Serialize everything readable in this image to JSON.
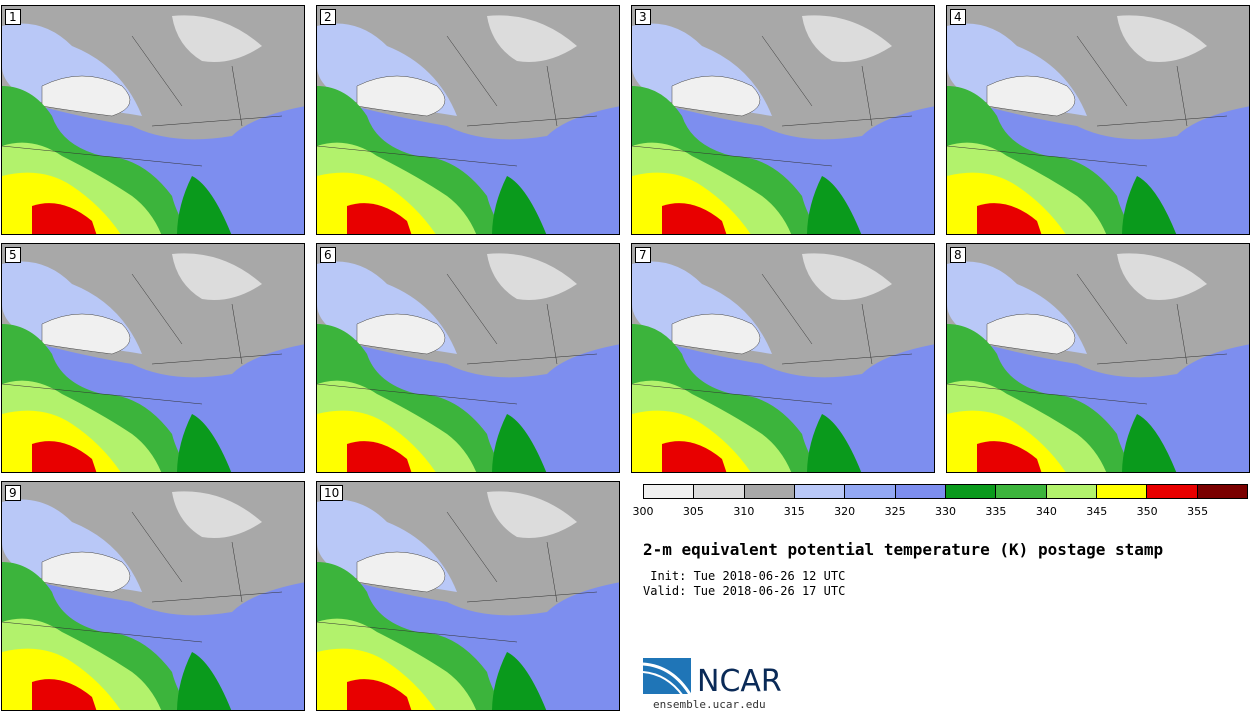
{
  "title": "2-m equivalent potential temperature (K) postage stamp",
  "init": " Init: Tue 2018-06-26 12 UTC",
  "valid": "Valid: Tue 2018-06-26 17 UTC",
  "logo": {
    "text": "NCAR",
    "url_text": "ensemble.ucar.edu"
  },
  "panels": [
    {
      "label": "1"
    },
    {
      "label": "2"
    },
    {
      "label": "3"
    },
    {
      "label": "4"
    },
    {
      "label": "5"
    },
    {
      "label": "6"
    },
    {
      "label": "7"
    },
    {
      "label": "8"
    },
    {
      "label": "9"
    },
    {
      "label": "10"
    }
  ],
  "colorbar": {
    "ticks": [
      "300",
      "305",
      "310",
      "315",
      "320",
      "325",
      "330",
      "335",
      "340",
      "345",
      "350",
      "355"
    ],
    "colors": [
      "#f0f0f0",
      "#dcdcdc",
      "#a8a8a8",
      "#b9c8f7",
      "#93a8f3",
      "#7d8eef",
      "#0a9a1c",
      "#3cb43c",
      "#b2f26c",
      "#ffff00",
      "#e80000",
      "#7a0000"
    ]
  }
}
